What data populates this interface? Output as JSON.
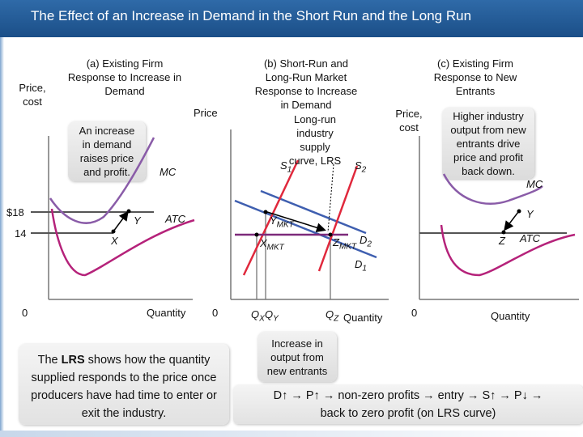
{
  "title": "The Effect of an Increase in Demand in the Short Run and the Long Run",
  "panel_a": {
    "heading": [
      "(a) Existing Firm",
      "Response to Increase in",
      "Demand"
    ],
    "y_axis_label": [
      "Price,",
      "cost"
    ],
    "callout": [
      "An increase",
      "in demand",
      "raises price",
      "and profit."
    ],
    "mc_label": "MC",
    "atc_label": "ATC",
    "point_y": "Y",
    "point_x": "X",
    "price_high": "$18",
    "price_low": "14",
    "origin": "0",
    "x_axis_label": "Quantity"
  },
  "panel_b": {
    "heading": [
      "(b) Short-Run and",
      "Long-Run Market",
      "Response to Increase",
      "in Demand"
    ],
    "y_axis_label": "Price",
    "lr_text": [
      "Long-run",
      "industry",
      "supply",
      "curve, LRS"
    ],
    "s1": "S",
    "s1_sub": "1",
    "s2": "S",
    "s2_sub": "2",
    "point_y": "Y",
    "point_y_sub": "MKT",
    "point_x": "X",
    "point_x_sub": "MKT",
    "point_z": "Z",
    "point_z_sub": "MKT",
    "d2": "D",
    "d2_sub": "2",
    "d1": "D",
    "d1_sub": "1",
    "origin": "0",
    "q_x": "Q",
    "q_x_sub": "X",
    "q_y": "Q",
    "q_y_sub": "Y",
    "q_z": "Q",
    "q_z_sub": "Z",
    "x_axis_label": "Quantity",
    "callout": [
      "Increase in",
      "output from",
      "new  entrants"
    ]
  },
  "panel_c": {
    "heading": [
      "(c) Existing Firm",
      "Response to New",
      "Entrants"
    ],
    "y_axis_label": [
      "Price,",
      "cost"
    ],
    "callout": [
      "Higher industry",
      "output from new",
      "entrants drive",
      "price and profit",
      "back down."
    ],
    "mc_label": "MC",
    "atc_label": "ATC",
    "point_y": "Y",
    "point_z": "Z",
    "origin": "0",
    "x_axis_label": "Quantity"
  },
  "bottom_note": {
    "prefix": "The ",
    "bold": "LRS",
    "rest": " shows how the quantity supplied responds to the price once producers have had time to enter or exit the industry."
  },
  "chain": {
    "line1": "D↑ → P↑ → non-zero profits → entry → S↑ → P↓ →",
    "line2": "back to zero profit (on LRS curve)"
  },
  "colors": {
    "title_bg": "#1f5a97",
    "mc_curve": "#8a5ca8",
    "atc_curve": "#b5227a",
    "price_line": "#555555",
    "supply_curve": "#e0283c",
    "demand_curve": "#3f5fb0",
    "lrs_curve": "#7d2a7a"
  }
}
